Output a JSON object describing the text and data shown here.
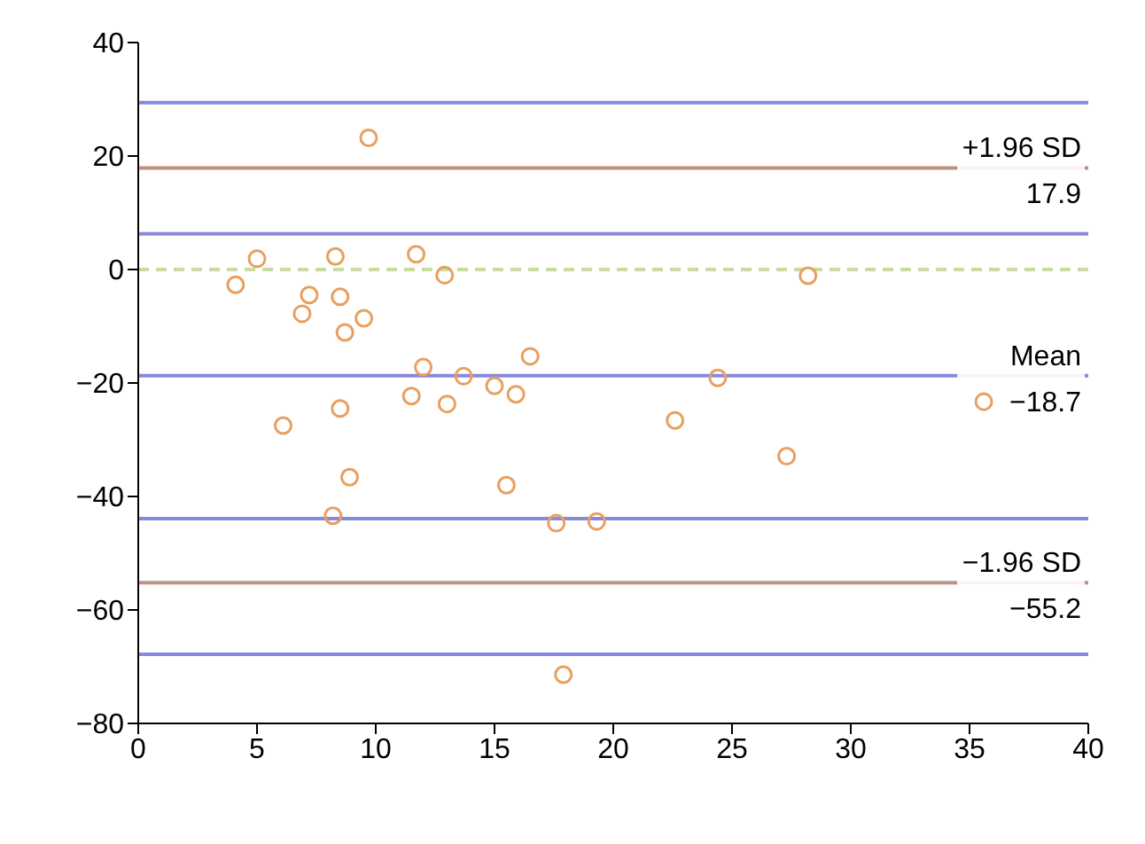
{
  "chart_data": {
    "type": "scatter",
    "marker": "circle",
    "grid": false,
    "legend": false,
    "xlim": [
      0,
      40
    ],
    "xticks": [
      0,
      5,
      10,
      15,
      20,
      25,
      30,
      35,
      40
    ],
    "ylim": [
      -80,
      40
    ],
    "yticks": [
      -80,
      -60,
      -40,
      -20,
      0,
      20,
      40
    ],
    "series": [
      {
        "color": "#e8a060",
        "x": [
          4.1,
          5.0,
          9.7,
          8.3,
          11.7,
          12.9,
          7.2,
          6.9,
          8.5,
          9.5,
          8.7,
          12.0,
          13.7,
          11.5,
          13.0,
          8.5,
          6.1,
          8.9,
          8.2,
          15.0,
          15.9,
          16.5,
          24.4,
          22.6,
          27.3,
          15.5,
          17.6,
          19.3,
          17.9,
          28.2,
          35.6
        ],
        "values": [
          -2.7,
          1.9,
          23.2,
          2.3,
          2.7,
          -1.0,
          -4.5,
          -7.8,
          -4.8,
          -8.6,
          -11.1,
          -17.2,
          -18.8,
          -22.3,
          -23.7,
          -24.5,
          -27.5,
          -36.6,
          -43.4,
          -20.5,
          -22.0,
          -15.3,
          -19.1,
          -26.6,
          -32.9,
          -38.0,
          -44.7,
          -44.4,
          -71.4,
          -1.1,
          -23.3
        ]
      }
    ],
    "ref_lines": [
      {
        "axis": "y",
        "value": 29.4,
        "color": "#8888dd"
      },
      {
        "axis": "y",
        "value": 17.9,
        "label": "+1.96 SD",
        "color": "#c09080"
      },
      {
        "axis": "y",
        "value": 6.3,
        "color": "#8888dd"
      },
      {
        "axis": "y",
        "value": 0,
        "color": "#c8dca0",
        "line_style": "dashed"
      },
      {
        "axis": "y",
        "value": -18.7,
        "label": "Mean",
        "color": "#8888dd"
      },
      {
        "axis": "y",
        "value": -43.9,
        "color": "#8888dd"
      },
      {
        "axis": "y",
        "value": -55.2,
        "label": "−1.96 SD",
        "color": "#c09080"
      },
      {
        "axis": "y",
        "value": -67.8,
        "color": "#8888dd"
      }
    ],
    "annotations": [
      {
        "text": "17.9",
        "y": 17.9
      },
      {
        "text": "−18.7",
        "y": -18.7
      },
      {
        "text": "−55.2",
        "y": -55.2
      }
    ]
  }
}
